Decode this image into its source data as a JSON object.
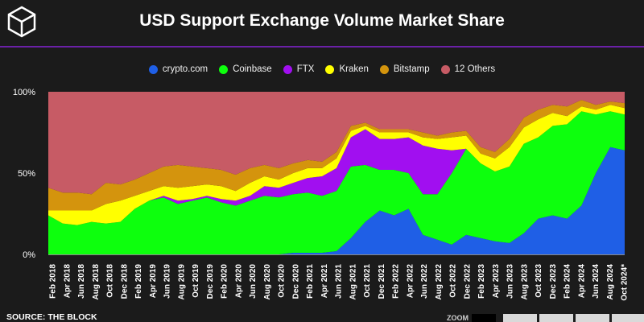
{
  "header": {
    "title": "USD Support Exchange Volume Market Share"
  },
  "footer": {
    "source": "SOURCE: THE BLOCK",
    "zoom_label": "ZOOM"
  },
  "colors": {
    "background": "#1b1b1b",
    "accent_rule": "#6b21a8"
  },
  "chart_data": {
    "type": "area",
    "stacked": true,
    "title": "USD Support Exchange Volume Market Share",
    "legend_position": "top-center",
    "ylim": [
      0,
      100
    ],
    "y_ticks": [
      "0%",
      "50%",
      "100%"
    ],
    "x_tick_labels": [
      "Feb 2018",
      "Apr 2018",
      "Jun 2018",
      "Aug 2018",
      "Oct 2018",
      "Dec 2018",
      "Feb 2019",
      "Apr 2019",
      "Jun 2019",
      "Aug 2019",
      "Oct 2019",
      "Dec 2019",
      "Feb 2020",
      "Apr 2020",
      "Jun 2020",
      "Aug 2020",
      "Oct 2020",
      "Dec 2020",
      "Feb 2021",
      "Apr 2021",
      "Jun 2021",
      "Aug 2021",
      "Oct 2021",
      "Dec 2021",
      "Feb 2022",
      "Apr 2022",
      "Jun 2022",
      "Aug 2022",
      "Oct 2022",
      "Dec 2022",
      "Feb 2023",
      "Apr 2023",
      "Jun 2023",
      "Aug 2023",
      "Oct 2023",
      "Dec 2023",
      "Feb 2024",
      "Apr 2024",
      "Jun 2024",
      "Aug 2024",
      "Oct 2024*"
    ],
    "series": [
      {
        "name": "crypto.com",
        "color": "#1f5fe6",
        "values": [
          0,
          0,
          0,
          0,
          0,
          0,
          0,
          0,
          0,
          0,
          0,
          0,
          0,
          0,
          0,
          0,
          0,
          1,
          1,
          1,
          2,
          10,
          20,
          27,
          24,
          28,
          12,
          9,
          6,
          12,
          10,
          8,
          7,
          13,
          22,
          24,
          22,
          30,
          50,
          66,
          64
        ]
      },
      {
        "name": "Coinbase",
        "color": "#0dff0d",
        "values": [
          24,
          19,
          18,
          20,
          19,
          20,
          28,
          33,
          35,
          31,
          33,
          35,
          32,
          30,
          33,
          36,
          35,
          36,
          37,
          35,
          37,
          44,
          35,
          25,
          28,
          22,
          25,
          28,
          44,
          53,
          46,
          43,
          47,
          55,
          50,
          55,
          58,
          58,
          36,
          22,
          22
        ]
      },
      {
        "name": "FTX",
        "color": "#a10ff0",
        "values": [
          0,
          0,
          0,
          0,
          0,
          0,
          0,
          0,
          1,
          2,
          1,
          1,
          2,
          3,
          3,
          6,
          6,
          7,
          9,
          12,
          14,
          18,
          22,
          19,
          19,
          22,
          30,
          28,
          14,
          0,
          0,
          0,
          0,
          0,
          0,
          0,
          0,
          0,
          0,
          0,
          0
        ]
      },
      {
        "name": "Kraken",
        "color": "#ffff00",
        "values": [
          3,
          8,
          9,
          7,
          12,
          13,
          8,
          6,
          6,
          8,
          8,
          7,
          8,
          6,
          8,
          6,
          5,
          6,
          6,
          5,
          6,
          4,
          2,
          4,
          4,
          3,
          5,
          6,
          8,
          8,
          6,
          8,
          12,
          10,
          11,
          8,
          5,
          3,
          3,
          4,
          4
        ]
      },
      {
        "name": "Bitstamp",
        "color": "#d4940d",
        "values": [
          14,
          11,
          11,
          10,
          13,
          10,
          10,
          11,
          12,
          14,
          12,
          10,
          10,
          10,
          9,
          7,
          7,
          6,
          5,
          4,
          4,
          3,
          2,
          2,
          2,
          2,
          3,
          2,
          3,
          3,
          4,
          4,
          5,
          6,
          6,
          5,
          6,
          4,
          3,
          2,
          3
        ]
      },
      {
        "name": "12 Others",
        "color": "#c75b65",
        "values": [
          59,
          62,
          62,
          63,
          56,
          57,
          54,
          50,
          46,
          45,
          46,
          47,
          48,
          51,
          47,
          45,
          47,
          44,
          42,
          43,
          37,
          21,
          19,
          23,
          23,
          23,
          25,
          27,
          25,
          24,
          34,
          37,
          29,
          16,
          11,
          8,
          9,
          5,
          8,
          6,
          7
        ]
      }
    ]
  }
}
